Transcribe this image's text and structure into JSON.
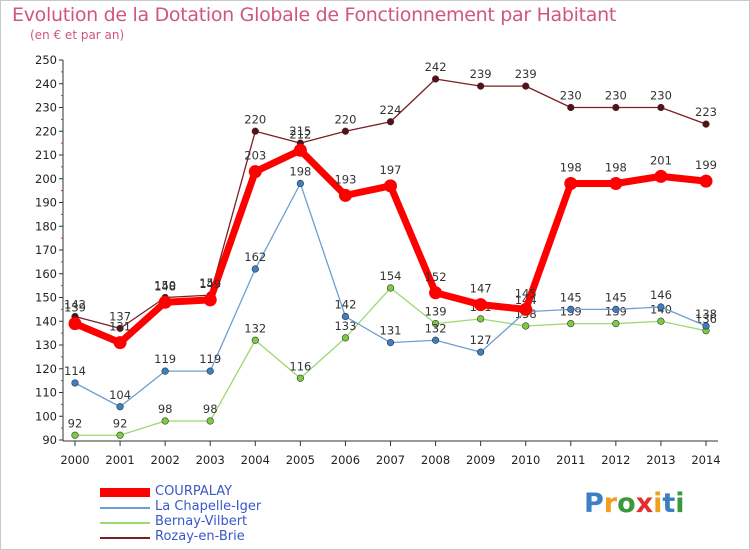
{
  "chart_data": {
    "type": "line",
    "title": "Evolution de la Dotation Globale de Fonctionnement par Habitant",
    "subtitle": "(en € et par an)",
    "x": [
      "2000",
      "2001",
      "2002",
      "2003",
      "2004",
      "2005",
      "2006",
      "2007",
      "2008",
      "2009",
      "2010",
      "2011",
      "2012",
      "2013",
      "2014"
    ],
    "ylim": [
      90,
      250
    ],
    "yticks": [
      "90",
      "100",
      "110",
      "120",
      "130",
      "140",
      "150",
      "160",
      "170",
      "180",
      "190",
      "200",
      "210",
      "220",
      "230",
      "240",
      "250"
    ],
    "series": [
      {
        "name": "Rozay-en-Brie",
        "color": "#7a1f26",
        "marker": "#5a0f16",
        "values": [
          142,
          137,
          150,
          151,
          220,
          215,
          220,
          224,
          242,
          239,
          239,
          230,
          230,
          230,
          223
        ],
        "labels": [
          "142",
          "137",
          "150",
          "151",
          "220",
          "215",
          "220",
          "224",
          "242",
          "239",
          "239",
          "230",
          "230",
          "230",
          "223"
        ]
      },
      {
        "name": "Bernay-Vilbert",
        "color": "#9ed870",
        "marker": "#7ccc42",
        "values": [
          92,
          92,
          98,
          98,
          132,
          116,
          133,
          154,
          139,
          141,
          138,
          139,
          139,
          140,
          136
        ],
        "labels": [
          "92",
          "92",
          "98",
          "98",
          "132",
          "116",
          "133",
          "154",
          "139",
          "141",
          "138",
          "139",
          "139",
          "140",
          "136"
        ]
      },
      {
        "name": "La Chapelle-Iger",
        "color": "#6d9fd0",
        "marker": "#3d7fc4",
        "values": [
          114,
          104,
          119,
          119,
          162,
          198,
          142,
          131,
          132,
          127,
          144,
          145,
          145,
          146,
          138
        ],
        "labels": [
          "114",
          "104",
          "119",
          "119",
          "162",
          "198",
          "142",
          "131",
          "132",
          "127",
          "144",
          "145",
          "145",
          "146",
          "138"
        ]
      },
      {
        "name": "COURPALAY",
        "color": "#ff0000",
        "marker": "#ff0000",
        "values": [
          139,
          131,
          148,
          149,
          203,
          212,
          193,
          197,
          152,
          147,
          145,
          198,
          198,
          201,
          199
        ],
        "labels": [
          "139",
          "131",
          "148",
          "149",
          "203",
          "212",
          "193",
          "197",
          "152",
          "147",
          "145",
          "198",
          "198",
          "201",
          "199"
        ]
      }
    ],
    "legend": [
      "COURPALAY",
      "La Chapelle-Iger",
      "Bernay-Vilbert",
      "Rozay-en-Brie"
    ],
    "legend_colors": [
      "#ff0000",
      "#6d9fd0",
      "#9ed870",
      "#7a1f26"
    ],
    "grid": false
  },
  "logo": {
    "letters": [
      "P",
      "r",
      "o",
      "x",
      "i",
      "t",
      "i"
    ],
    "colors": [
      "#3d7fc4",
      "#f0a020",
      "#3a9a3a",
      "#e03030",
      "#f0a020",
      "#3d7fc4",
      "#3a9a3a"
    ]
  }
}
